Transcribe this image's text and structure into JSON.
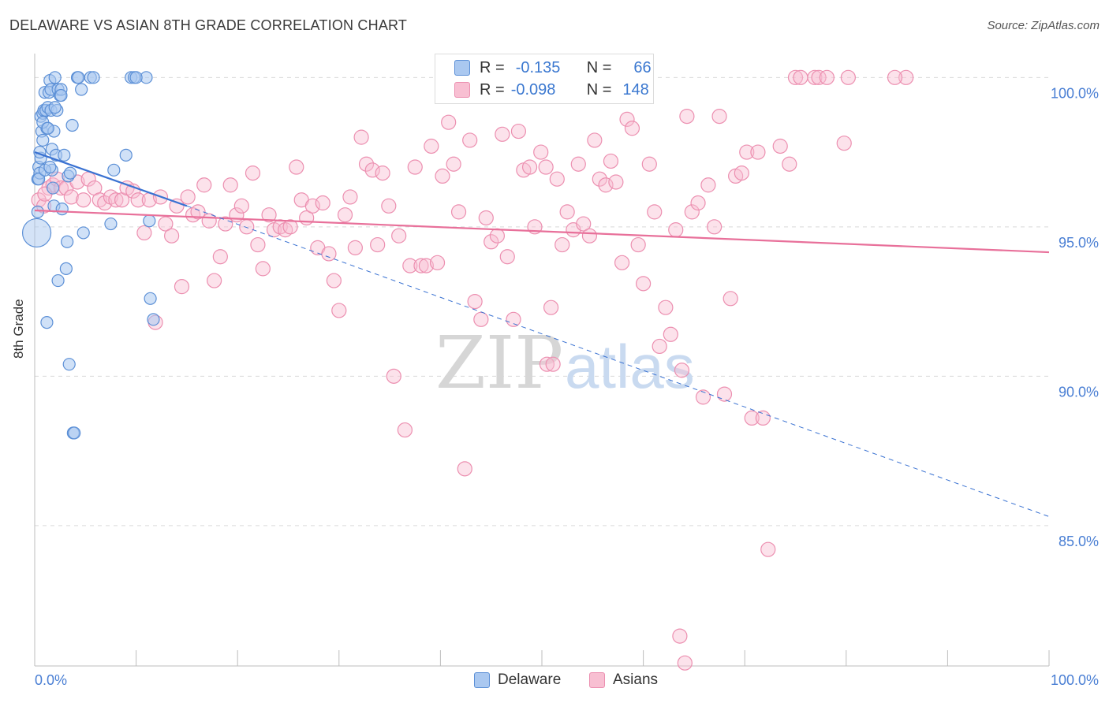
{
  "title": "DELAWARE VS ASIAN 8TH GRADE CORRELATION CHART",
  "source": "Source: ZipAtlas.com",
  "watermark": {
    "zip": "ZIP",
    "atlas": "atlas"
  },
  "legend": {
    "rows": [
      {
        "r_label": "R =",
        "r_value": "-0.135",
        "n_label": "N =",
        "n_value": "66"
      },
      {
        "r_label": "R =",
        "r_value": "-0.098",
        "n_label": "N =",
        "n_value": "148"
      }
    ]
  },
  "bottom_legend": {
    "delaware": "Delaware",
    "asians": "Asians"
  },
  "colors": {
    "delaware_fill": "#aac8f0",
    "delaware_stroke": "#5b8fd6",
    "delaware_line": "#3a72d2",
    "asians_fill": "#f8bfd2",
    "asians_stroke": "#ec8fb0",
    "asians_line": "#e8709a",
    "tick_label": "#4a7fd4",
    "grid": "#d9d9d9"
  },
  "chart_data": {
    "type": "scatter",
    "title": "DELAWARE VS ASIAN 8TH GRADE CORRELATION CHART",
    "xlabel": "",
    "ylabel": "8th Grade",
    "xlim": [
      0,
      100
    ],
    "ylim": [
      80.3,
      100.8
    ],
    "x_tick_labels": [
      "0.0%",
      "100.0%"
    ],
    "y_ticks": [
      {
        "value": 85,
        "label": "85.0%"
      },
      {
        "value": 90,
        "label": "90.0%"
      },
      {
        "value": 95,
        "label": "95.0%"
      },
      {
        "value": 100,
        "label": "100.0%"
      }
    ],
    "grid": "horizontal dashed",
    "series": [
      {
        "name": "Delaware",
        "r": -0.135,
        "n": 66,
        "trend": {
          "x0": 0,
          "y0": 97.5,
          "x1": 15,
          "y1": 95.7,
          "dashed_to_x": 100,
          "dashed_to_y": 85.3
        },
        "points": [
          [
            0.2,
            94.8
          ],
          [
            0.3,
            95.5
          ],
          [
            0.3,
            96.6
          ],
          [
            0.4,
            97.0
          ],
          [
            0.5,
            96.8
          ],
          [
            0.6,
            97.3
          ],
          [
            0.6,
            98.7
          ],
          [
            0.7,
            98.2
          ],
          [
            0.8,
            97.9
          ],
          [
            0.8,
            98.8
          ],
          [
            0.9,
            98.9
          ],
          [
            1.0,
            99.5
          ],
          [
            1.1,
            98.9
          ],
          [
            1.2,
            98.3
          ],
          [
            1.3,
            99.0
          ],
          [
            1.4,
            99.5
          ],
          [
            1.5,
            99.9
          ],
          [
            1.6,
            99.6
          ],
          [
            1.6,
            98.9
          ],
          [
            1.7,
            97.6
          ],
          [
            1.7,
            96.9
          ],
          [
            1.8,
            96.3
          ],
          [
            1.9,
            95.7
          ],
          [
            1.9,
            98.2
          ],
          [
            2.0,
            100.0
          ],
          [
            2.1,
            97.4
          ],
          [
            2.2,
            98.9
          ],
          [
            2.3,
            99.6
          ],
          [
            2.5,
            99.4
          ],
          [
            2.6,
            99.6
          ],
          [
            2.7,
            95.6
          ],
          [
            2.9,
            97.4
          ],
          [
            3.1,
            93.6
          ],
          [
            3.2,
            94.5
          ],
          [
            3.3,
            96.7
          ],
          [
            3.4,
            90.4
          ],
          [
            3.5,
            96.8
          ],
          [
            3.7,
            98.4
          ],
          [
            3.8,
            88.1
          ],
          [
            3.9,
            88.1
          ],
          [
            4.2,
            100.0
          ],
          [
            4.6,
            99.6
          ],
          [
            4.8,
            94.8
          ],
          [
            5.5,
            100.0
          ],
          [
            5.8,
            100.0
          ],
          [
            7.5,
            95.1
          ],
          [
            7.8,
            96.9
          ],
          [
            9.0,
            97.4
          ],
          [
            9.5,
            100.0
          ],
          [
            9.8,
            100.0
          ],
          [
            11.0,
            100.0
          ],
          [
            11.3,
            95.2
          ],
          [
            11.4,
            92.6
          ],
          [
            11.7,
            91.9
          ],
          [
            1.2,
            91.8
          ],
          [
            2.3,
            93.2
          ],
          [
            0.4,
            96.6
          ],
          [
            0.5,
            97.5
          ],
          [
            1.0,
            96.9
          ],
          [
            1.5,
            97.0
          ],
          [
            2.0,
            99.0
          ],
          [
            2.6,
            99.4
          ],
          [
            0.8,
            98.5
          ],
          [
            1.3,
            98.3
          ],
          [
            4.3,
            100.0
          ],
          [
            10.0,
            100.0
          ]
        ]
      },
      {
        "name": "Asians",
        "r": -0.098,
        "n": 148,
        "trend": {
          "x0": 0,
          "y0": 95.55,
          "x1": 100,
          "y1": 94.15
        },
        "points": [
          [
            0.4,
            95.9
          ],
          [
            0.9,
            95.7
          ],
          [
            1.4,
            96.3
          ],
          [
            1.8,
            96.4
          ],
          [
            2.2,
            96.6
          ],
          [
            2.6,
            96.3
          ],
          [
            3.1,
            96.3
          ],
          [
            3.6,
            96.0
          ],
          [
            4.2,
            96.5
          ],
          [
            4.8,
            95.9
          ],
          [
            5.3,
            96.6
          ],
          [
            5.9,
            96.3
          ],
          [
            6.4,
            95.9
          ],
          [
            6.9,
            95.8
          ],
          [
            7.5,
            96.0
          ],
          [
            8.0,
            95.9
          ],
          [
            8.6,
            95.9
          ],
          [
            9.1,
            96.3
          ],
          [
            9.7,
            96.2
          ],
          [
            10.2,
            95.9
          ],
          [
            10.8,
            94.8
          ],
          [
            11.3,
            95.9
          ],
          [
            11.9,
            91.8
          ],
          [
            12.4,
            96.0
          ],
          [
            12.9,
            95.1
          ],
          [
            13.5,
            94.7
          ],
          [
            14.0,
            95.7
          ],
          [
            14.5,
            93.0
          ],
          [
            15.1,
            96.0
          ],
          [
            15.6,
            95.4
          ],
          [
            16.1,
            95.5
          ],
          [
            16.7,
            96.4
          ],
          [
            17.2,
            95.2
          ],
          [
            17.7,
            93.2
          ],
          [
            18.3,
            94.0
          ],
          [
            18.8,
            95.1
          ],
          [
            19.3,
            96.4
          ],
          [
            19.9,
            95.4
          ],
          [
            20.4,
            95.7
          ],
          [
            20.9,
            95.0
          ],
          [
            21.5,
            96.8
          ],
          [
            22.0,
            94.4
          ],
          [
            22.5,
            93.6
          ],
          [
            23.1,
            95.4
          ],
          [
            23.6,
            94.9
          ],
          [
            24.2,
            95.0
          ],
          [
            24.7,
            94.9
          ],
          [
            25.2,
            95.0
          ],
          [
            25.8,
            97.0
          ],
          [
            26.3,
            95.9
          ],
          [
            26.8,
            95.3
          ],
          [
            27.4,
            95.7
          ],
          [
            27.9,
            94.3
          ],
          [
            28.4,
            95.8
          ],
          [
            29.0,
            94.1
          ],
          [
            29.5,
            93.2
          ],
          [
            30.0,
            92.2
          ],
          [
            30.6,
            95.4
          ],
          [
            31.1,
            96.0
          ],
          [
            31.6,
            94.3
          ],
          [
            32.2,
            98.0
          ],
          [
            32.7,
            97.1
          ],
          [
            33.3,
            96.9
          ],
          [
            33.8,
            94.4
          ],
          [
            34.3,
            96.8
          ],
          [
            34.9,
            95.7
          ],
          [
            35.4,
            90.0
          ],
          [
            35.9,
            94.7
          ],
          [
            36.5,
            88.2
          ],
          [
            37.0,
            93.7
          ],
          [
            37.5,
            97.0
          ],
          [
            38.1,
            93.7
          ],
          [
            38.6,
            93.7
          ],
          [
            39.1,
            97.7
          ],
          [
            39.7,
            93.8
          ],
          [
            40.2,
            96.7
          ],
          [
            40.8,
            98.5
          ],
          [
            41.3,
            97.1
          ],
          [
            41.8,
            95.5
          ],
          [
            42.4,
            86.9
          ],
          [
            42.9,
            97.9
          ],
          [
            43.4,
            92.5
          ],
          [
            44.0,
            91.9
          ],
          [
            44.5,
            95.3
          ],
          [
            45.0,
            94.5
          ],
          [
            45.6,
            94.7
          ],
          [
            46.1,
            98.1
          ],
          [
            46.6,
            94.0
          ],
          [
            47.2,
            91.9
          ],
          [
            47.7,
            98.2
          ],
          [
            48.2,
            96.9
          ],
          [
            48.8,
            97.0
          ],
          [
            49.3,
            95.0
          ],
          [
            49.9,
            97.5
          ],
          [
            50.4,
            97.0
          ],
          [
            50.9,
            92.3
          ],
          [
            51.5,
            96.6
          ],
          [
            52.0,
            94.4
          ],
          [
            52.5,
            95.5
          ],
          [
            53.1,
            94.9
          ],
          [
            53.6,
            97.1
          ],
          [
            54.1,
            95.1
          ],
          [
            54.7,
            94.7
          ],
          [
            55.2,
            97.9
          ],
          [
            55.7,
            96.6
          ],
          [
            56.3,
            96.4
          ],
          [
            56.8,
            97.2
          ],
          [
            57.3,
            96.5
          ],
          [
            57.9,
            93.8
          ],
          [
            58.4,
            98.6
          ],
          [
            58.9,
            98.3
          ],
          [
            59.5,
            94.4
          ],
          [
            60.0,
            93.1
          ],
          [
            60.6,
            97.1
          ],
          [
            61.1,
            95.5
          ],
          [
            61.6,
            91.0
          ],
          [
            62.2,
            92.3
          ],
          [
            62.7,
            91.4
          ],
          [
            63.2,
            94.9
          ],
          [
            63.8,
            90.2
          ],
          [
            64.3,
            98.7
          ],
          [
            64.8,
            95.5
          ],
          [
            65.4,
            95.8
          ],
          [
            65.9,
            89.3
          ],
          [
            66.4,
            96.4
          ],
          [
            67.0,
            95.0
          ],
          [
            67.5,
            98.7
          ],
          [
            68.0,
            89.4
          ],
          [
            68.6,
            92.6
          ],
          [
            69.1,
            96.7
          ],
          [
            69.7,
            96.8
          ],
          [
            70.2,
            97.5
          ],
          [
            70.7,
            88.6
          ],
          [
            71.3,
            97.5
          ],
          [
            71.8,
            88.6
          ],
          [
            72.3,
            84.2
          ],
          [
            73.5,
            97.7
          ],
          [
            74.4,
            97.1
          ],
          [
            75.0,
            100.0
          ],
          [
            75.5,
            100.0
          ],
          [
            76.9,
            100.0
          ],
          [
            77.3,
            100.0
          ],
          [
            78.1,
            100.0
          ],
          [
            79.8,
            97.8
          ],
          [
            80.2,
            100.0
          ],
          [
            85.9,
            100.0
          ],
          [
            84.8,
            100.0
          ],
          [
            63.6,
            81.3
          ],
          [
            64.1,
            80.4
          ],
          [
            50.5,
            90.4
          ],
          [
            51.1,
            90.4
          ],
          [
            1.0,
            96.1
          ]
        ]
      }
    ]
  }
}
